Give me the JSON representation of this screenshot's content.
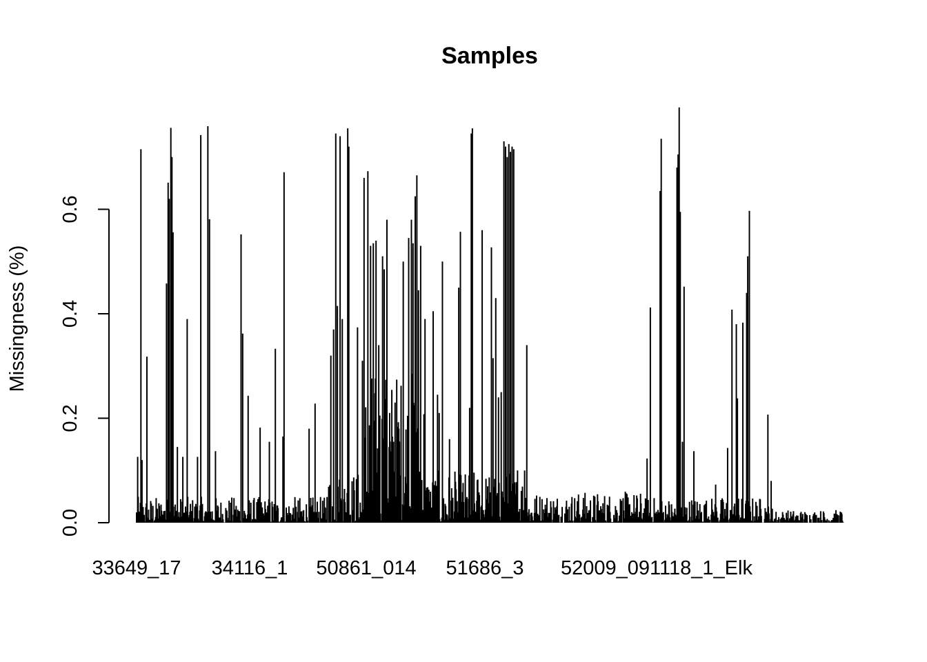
{
  "chart_data": {
    "type": "bar",
    "title": "Samples",
    "xlabel": "",
    "ylabel": "Missingness (%)",
    "ylim": [
      0,
      0.8
    ],
    "yticks": [
      "0.0",
      "0.2",
      "0.4",
      "0.6"
    ],
    "categories": [
      "33649_17",
      "34116_1",
      "50861_014",
      "51686_3",
      "52009_091118_1_Elk"
    ],
    "n_samples": 1300,
    "bar_color": "#000000",
    "spikes": [
      {
        "x": 2,
        "y": 0.126
      },
      {
        "x": 8,
        "y": 0.715
      },
      {
        "x": 10,
        "y": 0.12
      },
      {
        "x": 19,
        "y": 0.318
      },
      {
        "x": 55,
        "y": 0.458
      },
      {
        "x": 58,
        "y": 0.651
      },
      {
        "x": 60,
        "y": 0.62
      },
      {
        "x": 63,
        "y": 0.756
      },
      {
        "x": 65,
        "y": 0.7
      },
      {
        "x": 67,
        "y": 0.556
      },
      {
        "x": 75,
        "y": 0.145
      },
      {
        "x": 85,
        "y": 0.126
      },
      {
        "x": 93,
        "y": 0.39
      },
      {
        "x": 112,
        "y": 0.126
      },
      {
        "x": 118,
        "y": 0.742
      },
      {
        "x": 131,
        "y": 0.759
      },
      {
        "x": 134,
        "y": 0.581
      },
      {
        "x": 145,
        "y": 0.137
      },
      {
        "x": 192,
        "y": 0.552
      },
      {
        "x": 195,
        "y": 0.362
      },
      {
        "x": 205,
        "y": 0.243
      },
      {
        "x": 227,
        "y": 0.182
      },
      {
        "x": 244,
        "y": 0.155
      },
      {
        "x": 255,
        "y": 0.333
      },
      {
        "x": 269,
        "y": 0.165
      },
      {
        "x": 271,
        "y": 0.671
      },
      {
        "x": 317,
        "y": 0.18
      },
      {
        "x": 328,
        "y": 0.228
      },
      {
        "x": 357,
        "y": 0.32
      },
      {
        "x": 362,
        "y": 0.37
      },
      {
        "x": 366,
        "y": 0.745
      },
      {
        "x": 369,
        "y": 0.415
      },
      {
        "x": 374,
        "y": 0.74
      },
      {
        "x": 378,
        "y": 0.39
      },
      {
        "x": 388,
        "y": 0.755
      },
      {
        "x": 390,
        "y": 0.72
      },
      {
        "x": 406,
        "y": 0.374
      },
      {
        "x": 415,
        "y": 0.31
      },
      {
        "x": 418,
        "y": 0.66
      },
      {
        "x": 425,
        "y": 0.673
      },
      {
        "x": 430,
        "y": 0.53
      },
      {
        "x": 435,
        "y": 0.535
      },
      {
        "x": 440,
        "y": 0.54
      },
      {
        "x": 445,
        "y": 0.34
      },
      {
        "x": 452,
        "y": 0.51
      },
      {
        "x": 455,
        "y": 0.485
      },
      {
        "x": 460,
        "y": 0.58
      },
      {
        "x": 465,
        "y": 0.21
      },
      {
        "x": 475,
        "y": 0.23
      },
      {
        "x": 482,
        "y": 0.18
      },
      {
        "x": 490,
        "y": 0.5
      },
      {
        "x": 500,
        "y": 0.545
      },
      {
        "x": 505,
        "y": 0.58
      },
      {
        "x": 508,
        "y": 0.535
      },
      {
        "x": 512,
        "y": 0.625
      },
      {
        "x": 515,
        "y": 0.665
      },
      {
        "x": 518,
        "y": 0.445
      },
      {
        "x": 522,
        "y": 0.53
      },
      {
        "x": 530,
        "y": 0.39
      },
      {
        "x": 545,
        "y": 0.405
      },
      {
        "x": 553,
        "y": 0.245
      },
      {
        "x": 556,
        "y": 0.21
      },
      {
        "x": 562,
        "y": 0.5
      },
      {
        "x": 575,
        "y": 0.16
      },
      {
        "x": 592,
        "y": 0.45
      },
      {
        "x": 595,
        "y": 0.557
      },
      {
        "x": 612,
        "y": 0.22
      },
      {
        "x": 615,
        "y": 0.745
      },
      {
        "x": 617,
        "y": 0.755
      },
      {
        "x": 635,
        "y": 0.56
      },
      {
        "x": 652,
        "y": 0.527
      },
      {
        "x": 655,
        "y": 0.315
      },
      {
        "x": 660,
        "y": 0.43
      },
      {
        "x": 665,
        "y": 0.24
      },
      {
        "x": 670,
        "y": 0.25
      },
      {
        "x": 675,
        "y": 0.73
      },
      {
        "x": 678,
        "y": 0.72
      },
      {
        "x": 681,
        "y": 0.7
      },
      {
        "x": 684,
        "y": 0.725
      },
      {
        "x": 687,
        "y": 0.71
      },
      {
        "x": 690,
        "y": 0.72
      },
      {
        "x": 693,
        "y": 0.715
      },
      {
        "x": 700,
        "y": 0.1
      },
      {
        "x": 713,
        "y": 0.1
      },
      {
        "x": 717,
        "y": 0.34
      },
      {
        "x": 938,
        "y": 0.123
      },
      {
        "x": 944,
        "y": 0.412
      },
      {
        "x": 962,
        "y": 0.635
      },
      {
        "x": 964,
        "y": 0.735
      },
      {
        "x": 993,
        "y": 0.68
      },
      {
        "x": 995,
        "y": 0.705
      },
      {
        "x": 997,
        "y": 0.795
      },
      {
        "x": 999,
        "y": 0.595
      },
      {
        "x": 1003,
        "y": 0.155
      },
      {
        "x": 1006,
        "y": 0.452
      },
      {
        "x": 1024,
        "y": 0.137
      },
      {
        "x": 1064,
        "y": 0.073
      },
      {
        "x": 1086,
        "y": 0.143
      },
      {
        "x": 1094,
        "y": 0.408
      },
      {
        "x": 1102,
        "y": 0.38
      },
      {
        "x": 1104,
        "y": 0.238
      },
      {
        "x": 1114,
        "y": 0.383
      },
      {
        "x": 1121,
        "y": 0.44
      },
      {
        "x": 1123,
        "y": 0.51
      },
      {
        "x": 1126,
        "y": 0.597
      },
      {
        "x": 1160,
        "y": 0.207
      },
      {
        "x": 1166,
        "y": 0.08
      }
    ],
    "baseline_segments": [
      {
        "from": 0,
        "to": 350,
        "max": 0.05
      },
      {
        "from": 350,
        "to": 420,
        "max": 0.1
      },
      {
        "from": 420,
        "to": 530,
        "max": 0.3
      },
      {
        "from": 530,
        "to": 720,
        "max": 0.1
      },
      {
        "from": 720,
        "to": 930,
        "max": 0.06
      },
      {
        "from": 930,
        "to": 1170,
        "max": 0.05
      },
      {
        "from": 1170,
        "to": 1300,
        "max": 0.025
      }
    ]
  }
}
